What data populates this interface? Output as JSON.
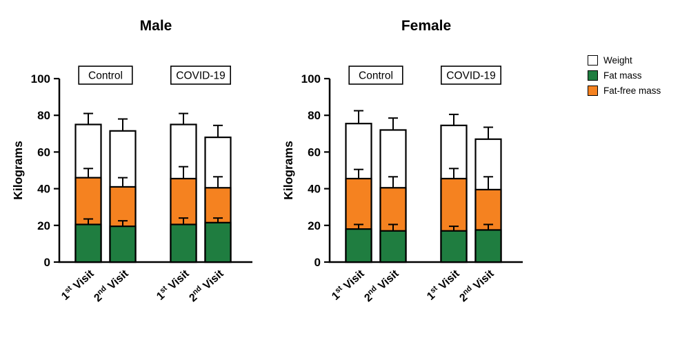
{
  "legend": {
    "items": [
      {
        "label": "Weight",
        "color": "#ffffff"
      },
      {
        "label": "Fat mass",
        "color": "#1f7d40"
      },
      {
        "label": "Fat-free mass",
        "color": "#f58220"
      }
    ]
  },
  "chart_data": [
    {
      "type": "bar",
      "title": "Male",
      "ylabel": "Kilograms",
      "ylim": [
        0,
        100
      ],
      "yticks": [
        0,
        20,
        40,
        60,
        80,
        100
      ],
      "group_labels": [
        "Control",
        "COVID-19"
      ],
      "categories": [
        "1st Visit",
        "2nd Visit",
        "1st Visit",
        "2nd Visit"
      ],
      "bar_style": "overlapped",
      "series": [
        {
          "name": "Weight",
          "color": "#ffffff",
          "values": [
            75,
            71.5,
            75,
            68
          ],
          "errors": [
            6,
            6.5,
            6,
            6.5
          ]
        },
        {
          "name": "Fat-free mass",
          "color": "#f58220",
          "values": [
            46,
            41,
            45.5,
            40.5
          ],
          "errors": [
            5,
            5,
            6.5,
            6
          ]
        },
        {
          "name": "Fat mass",
          "color": "#1f7d40",
          "values": [
            20.5,
            19.5,
            20.5,
            21.5
          ],
          "errors": [
            3,
            3,
            3.5,
            2.5
          ]
        }
      ]
    },
    {
      "type": "bar",
      "title": "Female",
      "ylabel": "Kilograms",
      "ylim": [
        0,
        100
      ],
      "yticks": [
        0,
        20,
        40,
        60,
        80,
        100
      ],
      "group_labels": [
        "Control",
        "COVID-19"
      ],
      "categories": [
        "1st Visit",
        "2nd Visit",
        "1st Visit",
        "2nd Visit"
      ],
      "bar_style": "overlapped",
      "series": [
        {
          "name": "Weight",
          "color": "#ffffff",
          "values": [
            75.5,
            72,
            74.5,
            67
          ],
          "errors": [
            7,
            6.5,
            6,
            6.5
          ]
        },
        {
          "name": "Fat-free mass",
          "color": "#f58220",
          "values": [
            45.5,
            40.5,
            45.5,
            39.5
          ],
          "errors": [
            5,
            6,
            5.5,
            7
          ]
        },
        {
          "name": "Fat mass",
          "color": "#1f7d40",
          "values": [
            18,
            17,
            17,
            17.5
          ],
          "errors": [
            2.5,
            3.5,
            2.5,
            3
          ]
        }
      ]
    }
  ]
}
